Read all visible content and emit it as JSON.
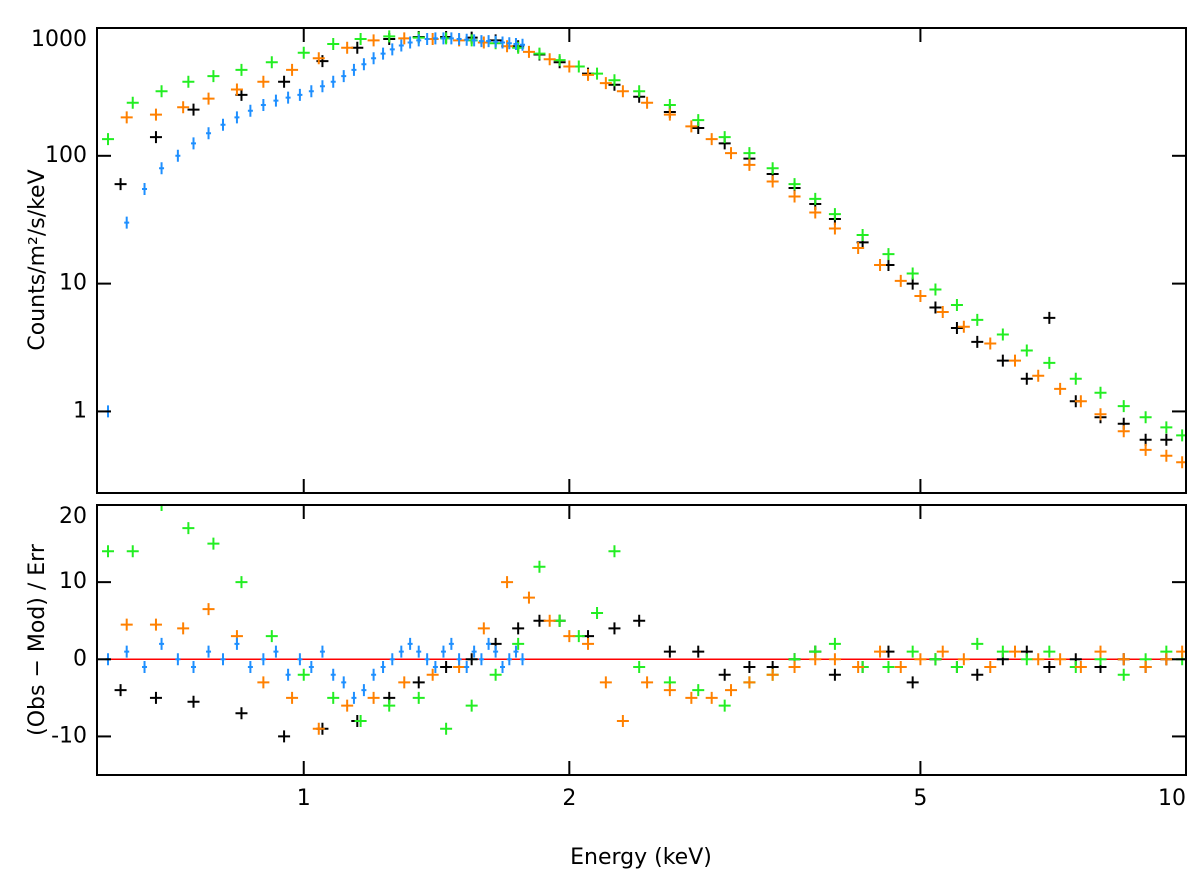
{
  "chart_data": [
    {
      "type": "scatter",
      "ylabel": "Counts/m²/s/keV",
      "xscale": "log",
      "yscale": "log",
      "xlim": [
        0.583,
        10
      ],
      "xticks": [
        1,
        2,
        5,
        10
      ],
      "ylim": [
        0.23,
        1000
      ],
      "yticks": [
        1,
        10,
        100,
        1000
      ],
      "series": [
        {
          "color": "#000000",
          "x": [
            0.62,
            0.68,
            0.75,
            0.85,
            0.95,
            1.05,
            1.15,
            1.25,
            1.35,
            1.45,
            1.55,
            1.65,
            1.75,
            1.85,
            1.95,
            2.1,
            2.25,
            2.4,
            2.6,
            2.8,
            3.0,
            3.2,
            3.4,
            3.6,
            3.8,
            4.0,
            4.3,
            4.6,
            4.9,
            5.2,
            5.5,
            5.8,
            6.2,
            6.6,
            7.0,
            7.5,
            8.0,
            8.5,
            9.0,
            9.5
          ],
          "values": [
            60,
            140,
            230,
            300,
            380,
            550,
            700,
            820,
            850,
            850,
            840,
            800,
            720,
            620,
            540,
            440,
            360,
            290,
            220,
            165,
            125,
            95,
            72,
            56,
            42,
            32,
            21,
            14,
            10,
            6.5,
            4.5,
            3.5,
            2.5,
            1.8,
            5.4,
            1.2,
            0.9,
            0.8,
            0.6,
            0.6
          ]
        },
        {
          "color": "#22ee22",
          "x": [
            0.6,
            0.64,
            0.69,
            0.74,
            0.79,
            0.85,
            0.92,
            1.0,
            1.08,
            1.16,
            1.25,
            1.35,
            1.45,
            1.55,
            1.65,
            1.75,
            1.85,
            1.95,
            2.05,
            2.15,
            2.25,
            2.4,
            2.6,
            2.8,
            3.0,
            3.2,
            3.4,
            3.6,
            3.8,
            4.0,
            4.3,
            4.6,
            4.9,
            5.2,
            5.5,
            5.8,
            6.2,
            6.6,
            7.0,
            7.5,
            8.0,
            8.5,
            9.0,
            9.5,
            9.9
          ],
          "values": [
            135,
            260,
            320,
            380,
            420,
            470,
            540,
            640,
            750,
            820,
            860,
            840,
            830,
            800,
            760,
            700,
            630,
            560,
            500,
            440,
            390,
            320,
            250,
            190,
            140,
            105,
            80,
            60,
            46,
            35,
            24,
            17,
            12,
            9,
            6.8,
            5.2,
            4,
            3,
            2.4,
            1.8,
            1.4,
            1.1,
            0.9,
            0.75,
            0.65
          ]
        },
        {
          "color": "#ff8000",
          "x": [
            0.63,
            0.68,
            0.73,
            0.78,
            0.84,
            0.9,
            0.97,
            1.04,
            1.12,
            1.2,
            1.3,
            1.4,
            1.5,
            1.6,
            1.7,
            1.8,
            1.9,
            2.0,
            2.1,
            2.2,
            2.3,
            2.45,
            2.6,
            2.75,
            2.9,
            3.05,
            3.2,
            3.4,
            3.6,
            3.8,
            4.0,
            4.25,
            4.5,
            4.75,
            5.0,
            5.3,
            5.6,
            6.0,
            6.4,
            6.8,
            7.2,
            7.6,
            8.0,
            8.5,
            9.0,
            9.5,
            9.9
          ],
          "values": [
            200,
            210,
            240,
            280,
            330,
            380,
            470,
            580,
            700,
            800,
            830,
            820,
            800,
            770,
            720,
            650,
            570,
            500,
            430,
            370,
            320,
            260,
            210,
            170,
            135,
            105,
            85,
            63,
            48,
            36,
            27,
            19,
            14,
            10.5,
            8,
            6,
            4.6,
            3.4,
            2.5,
            1.9,
            1.5,
            1.2,
            0.95,
            0.7,
            0.5,
            0.45,
            0.4
          ]
        },
        {
          "color": "#1e8fff",
          "x": [
            0.6,
            0.63,
            0.66,
            0.69,
            0.72,
            0.75,
            0.78,
            0.81,
            0.84,
            0.87,
            0.9,
            0.93,
            0.96,
            0.99,
            1.02,
            1.05,
            1.08,
            1.11,
            1.14,
            1.17,
            1.2,
            1.23,
            1.26,
            1.29,
            1.32,
            1.35,
            1.38,
            1.41,
            1.44,
            1.47,
            1.5,
            1.53,
            1.56,
            1.59,
            1.62,
            1.65,
            1.68,
            1.71,
            1.74,
            1.77
          ],
          "values": [
            1,
            30,
            55,
            80,
            100,
            125,
            150,
            175,
            200,
            225,
            250,
            270,
            285,
            300,
            320,
            350,
            380,
            420,
            470,
            520,
            580,
            630,
            680,
            730,
            770,
            800,
            820,
            830,
            830,
            830,
            820,
            810,
            800,
            790,
            790,
            780,
            770,
            760,
            750,
            740
          ]
        }
      ]
    },
    {
      "type": "scatter",
      "xlabel": "Energy (keV)",
      "ylabel": "(Obs − Mod) / Err",
      "xscale": "log",
      "xlim": [
        0.583,
        10
      ],
      "xticks": [
        1,
        2,
        5,
        10
      ],
      "ylim": [
        -15,
        20
      ],
      "yticks": [
        -10,
        0,
        10,
        20
      ],
      "reference_line": {
        "value": 0,
        "color": "#ff0000"
      },
      "series": [
        {
          "color": "#000000",
          "x": [
            0.62,
            0.68,
            0.75,
            0.85,
            0.95,
            1.05,
            1.15,
            1.25,
            1.35,
            1.45,
            1.55,
            1.65,
            1.75,
            1.85,
            1.95,
            2.1,
            2.25,
            2.4,
            2.6,
            2.8,
            3.0,
            3.2,
            3.4,
            3.6,
            3.8,
            4.0,
            4.3,
            4.6,
            4.9,
            5.2,
            5.5,
            5.8,
            6.2,
            6.6,
            7.0,
            7.5,
            8.0,
            8.5,
            9.0,
            9.5
          ],
          "values": [
            -4,
            -5,
            -5.5,
            -7,
            -10,
            -9,
            -8,
            -5,
            -3,
            -1,
            0,
            2,
            4,
            5,
            5,
            3,
            4,
            5,
            1,
            1,
            -2,
            -1,
            -1,
            0,
            1,
            -2,
            -1,
            1,
            -3,
            0,
            -1,
            -2,
            0,
            1,
            -1,
            0,
            -1,
            0,
            -1,
            0
          ]
        },
        {
          "color": "#22ee22",
          "x": [
            0.6,
            0.64,
            0.69,
            0.74,
            0.79,
            0.85,
            0.92,
            1.0,
            1.08,
            1.16,
            1.25,
            1.35,
            1.45,
            1.55,
            1.65,
            1.75,
            1.85,
            1.95,
            2.05,
            2.15,
            2.25,
            2.4,
            2.6,
            2.8,
            3.0,
            3.2,
            3.4,
            3.6,
            3.8,
            4.0,
            4.3,
            4.6,
            4.9,
            5.2,
            5.5,
            5.8,
            6.2,
            6.6,
            7.0,
            7.5,
            8.0,
            8.5,
            9.0,
            9.5,
            9.9
          ],
          "values": [
            14,
            14,
            20,
            17,
            15,
            10,
            3,
            -2,
            -5,
            -8,
            -6,
            -5,
            -9,
            -6,
            -2,
            2,
            12,
            5,
            3,
            6,
            14,
            -1,
            -3,
            -4,
            -6,
            -3,
            -2,
            0,
            1,
            2,
            -1,
            -1,
            1,
            0,
            -1,
            2,
            1,
            0,
            1,
            -1,
            0,
            -2,
            0,
            1,
            0
          ]
        },
        {
          "color": "#ff8000",
          "x": [
            0.63,
            0.68,
            0.73,
            0.78,
            0.84,
            0.9,
            0.97,
            1.04,
            1.12,
            1.2,
            1.3,
            1.4,
            1.5,
            1.6,
            1.7,
            1.8,
            1.9,
            2.0,
            2.1,
            2.2,
            2.3,
            2.45,
            2.6,
            2.75,
            2.9,
            3.05,
            3.2,
            3.4,
            3.6,
            3.8,
            4.0,
            4.25,
            4.5,
            4.75,
            5.0,
            5.3,
            5.6,
            6.0,
            6.4,
            6.8,
            7.2,
            7.6,
            8.0,
            8.5,
            9.0,
            9.5,
            9.9
          ],
          "values": [
            4.5,
            4.5,
            4,
            6.5,
            3,
            -3,
            -5,
            -9,
            -6,
            -5,
            -3,
            -2,
            -1,
            4,
            10,
            8,
            5,
            3,
            2,
            -3,
            -8,
            -3,
            -4,
            -5,
            -5,
            -4,
            -3,
            -2,
            -1,
            0,
            0,
            -1,
            1,
            -1,
            0,
            1,
            0,
            -1,
            1,
            0,
            0,
            -1,
            1,
            0,
            -1,
            0,
            1
          ]
        },
        {
          "color": "#1e8fff",
          "x": [
            0.6,
            0.63,
            0.66,
            0.69,
            0.72,
            0.75,
            0.78,
            0.81,
            0.84,
            0.87,
            0.9,
            0.93,
            0.96,
            0.99,
            1.02,
            1.05,
            1.08,
            1.11,
            1.14,
            1.17,
            1.2,
            1.23,
            1.26,
            1.29,
            1.32,
            1.35,
            1.38,
            1.41,
            1.44,
            1.47,
            1.5,
            1.53,
            1.56,
            1.59,
            1.62,
            1.65,
            1.68,
            1.71,
            1.74,
            1.77
          ],
          "values": [
            0,
            1,
            -1,
            2,
            0,
            -1,
            1,
            0,
            2,
            -1,
            0,
            1,
            -2,
            0,
            -1,
            1,
            -2,
            -3,
            -5,
            -4,
            -2,
            -1,
            0,
            1,
            2,
            1,
            0,
            -1,
            1,
            2,
            0,
            -1,
            1,
            0,
            2,
            1,
            -1,
            0,
            1,
            0
          ]
        }
      ]
    }
  ]
}
